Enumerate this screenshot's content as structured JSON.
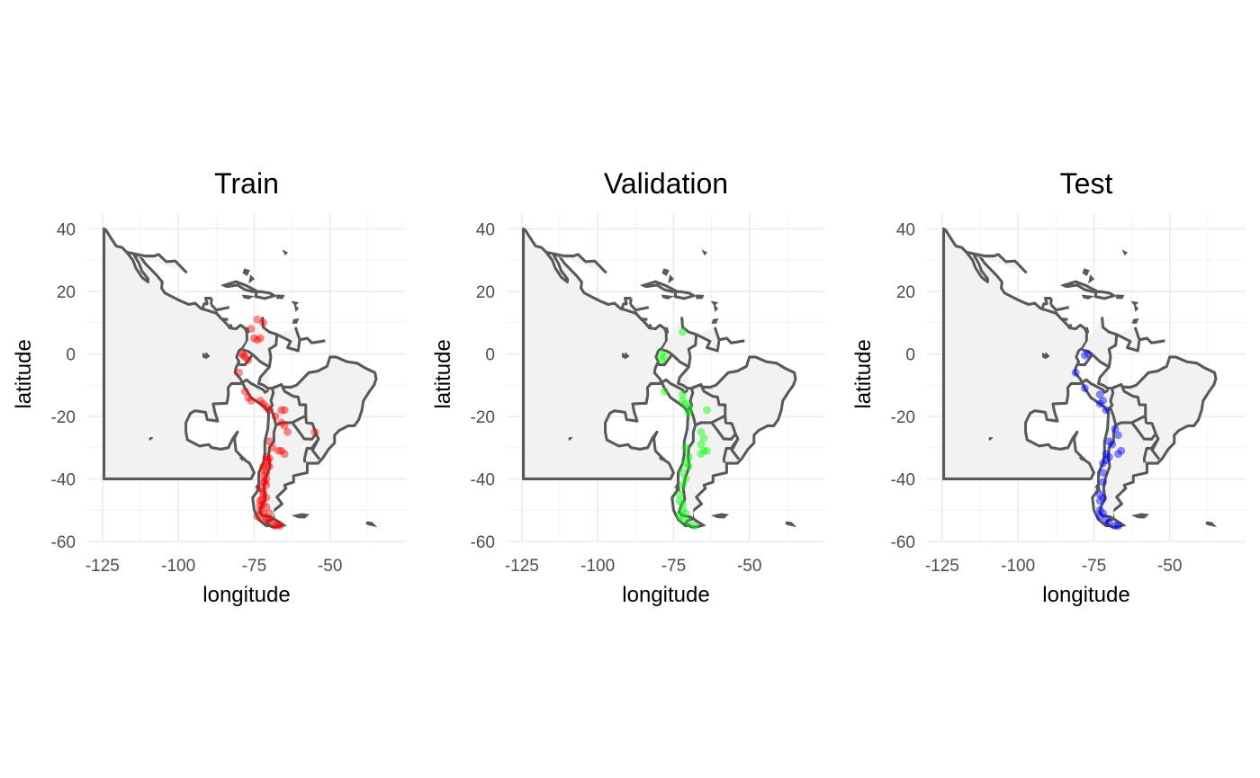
{
  "figure": {
    "facet_order": [
      "train",
      "validation",
      "test"
    ]
  },
  "chart_data": [
    {
      "type": "scatter",
      "id": "train",
      "title": "Train",
      "xlabel": "longitude",
      "ylabel": "latitude",
      "xlim": [
        -130,
        -25
      ],
      "ylim": [
        -60,
        45
      ],
      "xticks": [
        -125,
        -100,
        -75,
        -50
      ],
      "yticks": [
        40,
        20,
        0,
        -20,
        -40,
        -60
      ],
      "xtick_labels": [
        "-125",
        "-100",
        "-75",
        "-50"
      ],
      "ytick_labels": [
        "40",
        "20",
        "0",
        "-20",
        "-40",
        "-60"
      ],
      "grid": true,
      "point_color": "#ff0000",
      "point_alpha": 0.45,
      "points": [
        [
          -74,
          11
        ],
        [
          -72,
          10
        ],
        [
          -76,
          8
        ],
        [
          -75,
          5
        ],
        [
          -74,
          4.5
        ],
        [
          -73,
          5
        ],
        [
          -79,
          0
        ],
        [
          -78,
          -1
        ],
        [
          -78.5,
          -0.5
        ],
        [
          -77,
          -2
        ],
        [
          -80,
          -6
        ],
        [
          -78,
          -12
        ],
        [
          -77,
          -14
        ],
        [
          -76,
          -15
        ],
        [
          -73,
          -15
        ],
        [
          -72,
          -16
        ],
        [
          -71,
          -17
        ],
        [
          -70,
          -18
        ],
        [
          -66,
          -18
        ],
        [
          -65,
          -18
        ],
        [
          -68,
          -20
        ],
        [
          -66,
          -22
        ],
        [
          -65,
          -23
        ],
        [
          -64,
          -25
        ],
        [
          -55,
          -25
        ],
        [
          -70,
          -28
        ],
        [
          -69,
          -30
        ],
        [
          -67,
          -31
        ],
        [
          -66,
          -31
        ],
        [
          -65,
          -32
        ],
        [
          -71,
          -33
        ],
        [
          -70.5,
          -34
        ],
        [
          -71,
          -35
        ],
        [
          -70,
          -36
        ],
        [
          -72,
          -37
        ],
        [
          -71,
          -38
        ],
        [
          -72,
          -39
        ],
        [
          -71,
          -40
        ],
        [
          -72,
          -41
        ],
        [
          -71,
          -42
        ],
        [
          -73,
          -43
        ],
        [
          -72,
          -44
        ],
        [
          -72,
          -45
        ],
        [
          -71,
          -46
        ],
        [
          -73,
          -47
        ],
        [
          -72,
          -48
        ],
        [
          -71,
          -49
        ],
        [
          -73,
          -50
        ],
        [
          -72,
          -51
        ],
        [
          -70,
          -51
        ],
        [
          -74,
          -52
        ],
        [
          -72,
          -53
        ],
        [
          -71,
          -52.5
        ],
        [
          -70,
          -53
        ],
        [
          -69,
          -54
        ],
        [
          -68,
          -55
        ],
        [
          -67,
          -54.5
        ],
        [
          -66.5,
          -55
        ],
        [
          -73,
          -48.5
        ],
        [
          -72.5,
          -46.5
        ],
        [
          -71.5,
          -41
        ],
        [
          -70,
          -33.5
        ],
        [
          -72,
          -36
        ]
      ]
    },
    {
      "type": "scatter",
      "id": "validation",
      "title": "Validation",
      "xlabel": "longitude",
      "ylabel": "latitude",
      "xlim": [
        -130,
        -25
      ],
      "ylim": [
        -60,
        45
      ],
      "xticks": [
        -125,
        -100,
        -75,
        -50
      ],
      "yticks": [
        40,
        20,
        0,
        -20,
        -40,
        -60
      ],
      "xtick_labels": [
        "-125",
        "-100",
        "-75",
        "-50"
      ],
      "ytick_labels": [
        "40",
        "20",
        "0",
        "-20",
        "-40",
        "-60"
      ],
      "grid": true,
      "point_color": "#00ff00",
      "point_alpha": 0.45,
      "points": [
        [
          -72,
          7
        ],
        [
          -79,
          0
        ],
        [
          -78,
          -1
        ],
        [
          -79,
          -2
        ],
        [
          -78,
          -12
        ],
        [
          -72,
          -13
        ],
        [
          -72,
          -15
        ],
        [
          -71,
          -16
        ],
        [
          -70,
          -17
        ],
        [
          -70,
          -19
        ],
        [
          -64,
          -18
        ],
        [
          -66,
          -25
        ],
        [
          -65,
          -27
        ],
        [
          -66,
          -29
        ],
        [
          -65,
          -31
        ],
        [
          -66,
          -32
        ],
        [
          -64,
          -31
        ],
        [
          -71,
          -30
        ],
        [
          -70,
          -33
        ],
        [
          -71,
          -35
        ],
        [
          -70,
          -36
        ],
        [
          -72,
          -38
        ],
        [
          -71,
          -40
        ],
        [
          -72,
          -42
        ],
        [
          -73,
          -45
        ],
        [
          -72,
          -48
        ],
        [
          -72,
          -50
        ],
        [
          -71,
          -51
        ],
        [
          -73,
          -52
        ],
        [
          -72,
          -53
        ],
        [
          -70,
          -54
        ],
        [
          -68,
          -55
        ],
        [
          -73,
          -47
        ]
      ]
    },
    {
      "type": "scatter",
      "id": "test",
      "title": "Test",
      "xlabel": "longitude",
      "ylabel": "latitude",
      "xlim": [
        -130,
        -25
      ],
      "ylim": [
        -60,
        45
      ],
      "xticks": [
        -125,
        -100,
        -75,
        -50
      ],
      "yticks": [
        40,
        20,
        0,
        -20,
        -40,
        -60
      ],
      "xtick_labels": [
        "-125",
        "-100",
        "-75",
        "-50"
      ],
      "ytick_labels": [
        "40",
        "20",
        "0",
        "-20",
        "-40",
        "-60"
      ],
      "grid": true,
      "point_color": "#0000ff",
      "point_alpha": 0.45,
      "points": [
        [
          -77,
          0
        ],
        [
          -78,
          -0.5
        ],
        [
          -81,
          -6
        ],
        [
          -78,
          -11
        ],
        [
          -73,
          -13
        ],
        [
          -72,
          -15
        ],
        [
          -73,
          -16
        ],
        [
          -71,
          -18
        ],
        [
          -68,
          -24
        ],
        [
          -67,
          -26
        ],
        [
          -70,
          -28
        ],
        [
          -69,
          -29
        ],
        [
          -71,
          -32
        ],
        [
          -70,
          -33
        ],
        [
          -71,
          -34
        ],
        [
          -72,
          -35
        ],
        [
          -67,
          -32
        ],
        [
          -66,
          -31
        ],
        [
          -72,
          -38
        ],
        [
          -72,
          -41
        ],
        [
          -73,
          -45
        ],
        [
          -72,
          -46
        ],
        [
          -73,
          -50
        ],
        [
          -72,
          -51
        ],
        [
          -73,
          -52
        ],
        [
          -71,
          -53
        ],
        [
          -70,
          -54
        ],
        [
          -68,
          -55
        ],
        [
          -67,
          -55
        ],
        [
          -73,
          -47
        ]
      ]
    }
  ]
}
